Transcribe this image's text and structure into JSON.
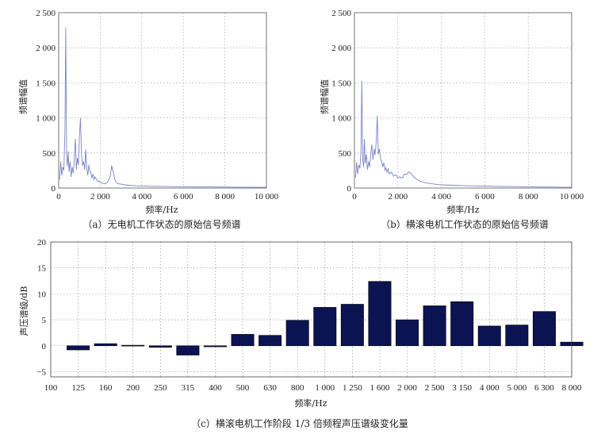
{
  "chart_data": [
    {
      "type": "line",
      "title": "",
      "caption": "（a）无电机工作状态的原始信号频谱",
      "xlabel": "频率/Hz",
      "ylabel": "频谱幅值",
      "xlim": [
        0,
        10000
      ],
      "ylim": [
        0,
        2500
      ],
      "xticks": [
        "0",
        "2 000",
        "4 000",
        "6 000",
        "8 000",
        "10 000"
      ],
      "yticks": [
        "0",
        "500",
        "1 000",
        "1 500",
        "2 000",
        "2 500"
      ],
      "grid": true,
      "color": "#7b86c4",
      "series": [
        {
          "x": [
            50,
            100,
            150,
            200,
            250,
            300,
            340,
            380,
            420,
            460,
            500,
            550,
            600,
            650,
            700,
            750,
            800,
            850,
            900,
            950,
            1000,
            1050,
            1100,
            1150,
            1200,
            1250,
            1300,
            1350,
            1400,
            1450,
            1500,
            1550,
            1600,
            1650,
            1700,
            1750,
            1800,
            1850,
            1900,
            1950,
            2000,
            2100,
            2200,
            2300,
            2400,
            2500,
            2550,
            2600,
            2650,
            2700,
            2750,
            2800,
            2900,
            3000,
            3100,
            3200,
            3400,
            3600,
            3800,
            4000,
            4500,
            5000,
            5500,
            6000,
            6500,
            7000,
            7500,
            8000,
            8500,
            9000,
            9500,
            10000
          ],
          "y": [
            120,
            380,
            180,
            300,
            250,
            810,
            2290,
            480,
            310,
            520,
            230,
            380,
            160,
            300,
            210,
            420,
            700,
            260,
            430,
            330,
            750,
            1000,
            470,
            320,
            380,
            260,
            550,
            290,
            180,
            330,
            240,
            220,
            140,
            200,
            120,
            160,
            130,
            110,
            90,
            100,
            80,
            70,
            60,
            70,
            110,
            190,
            320,
            260,
            200,
            130,
            90,
            70,
            60,
            55,
            50,
            45,
            40,
            35,
            30,
            30,
            25,
            25,
            20,
            20,
            18,
            18,
            15,
            15,
            12,
            12,
            10,
            10
          ]
        }
      ]
    },
    {
      "type": "line",
      "title": "",
      "caption": "（b）横滚电机工作状态的原始信号频谱",
      "xlabel": "频率/Hz",
      "ylabel": "频谱幅值",
      "xlim": [
        0,
        10000
      ],
      "ylim": [
        0,
        2500
      ],
      "xticks": [
        "0",
        "2 000",
        "4 000",
        "6 000",
        "8 000",
        "10 000"
      ],
      "yticks": [
        "0",
        "500",
        "1 000",
        "1 500",
        "2 000",
        "2 500"
      ],
      "grid": true,
      "color": "#7b86c4",
      "series": [
        {
          "x": [
            50,
            100,
            150,
            200,
            250,
            300,
            340,
            380,
            420,
            460,
            500,
            550,
            600,
            650,
            700,
            750,
            800,
            850,
            900,
            950,
            1000,
            1050,
            1100,
            1150,
            1200,
            1250,
            1300,
            1350,
            1400,
            1450,
            1500,
            1550,
            1600,
            1700,
            1800,
            1900,
            2000,
            2100,
            2200,
            2300,
            2400,
            2500,
            2600,
            2700,
            2800,
            2900,
            3000,
            3200,
            3400,
            3600,
            3800,
            4000,
            4500,
            5000,
            5500,
            6000,
            6500,
            7000,
            7500,
            8000,
            8500,
            9000,
            9500,
            10000
          ],
          "y": [
            150,
            370,
            200,
            330,
            280,
            520,
            1530,
            420,
            300,
            700,
            350,
            480,
            260,
            380,
            300,
            500,
            620,
            400,
            560,
            470,
            650,
            1030,
            480,
            560,
            420,
            380,
            300,
            360,
            250,
            290,
            220,
            280,
            200,
            230,
            170,
            190,
            150,
            160,
            140,
            200,
            190,
            230,
            210,
            170,
            140,
            120,
            100,
            80,
            70,
            60,
            50,
            45,
            40,
            35,
            30,
            28,
            25,
            22,
            20,
            18,
            15,
            15,
            12,
            12
          ]
        }
      ]
    },
    {
      "type": "bar",
      "title": "",
      "caption": "（c）横滚电机工作阶段 1/3 倍频程声压谱级变化量",
      "xlabel": "频率/Hz",
      "ylabel": "声压谱级/dB",
      "ylim": [
        -6,
        20
      ],
      "yticks": [
        "−5",
        "0",
        "5",
        "10",
        "15",
        "20"
      ],
      "grid": true,
      "color": "#0c1353",
      "categories": [
        "100",
        "125",
        "160",
        "200",
        "250",
        "315",
        "400",
        "500",
        "630",
        "800",
        "1 000",
        "1 250",
        "1 600",
        "2 000",
        "2 500",
        "3 150",
        "4 000",
        "5 000",
        "6 300",
        "8 000"
      ],
      "values": [
        null,
        -0.8,
        0.4,
        0.1,
        -0.3,
        -1.8,
        -0.2,
        2.2,
        2.0,
        4.9,
        7.4,
        8.0,
        12.4,
        5.0,
        7.7,
        8.5,
        3.8,
        4.0,
        6.6,
        0.7
      ]
    }
  ]
}
